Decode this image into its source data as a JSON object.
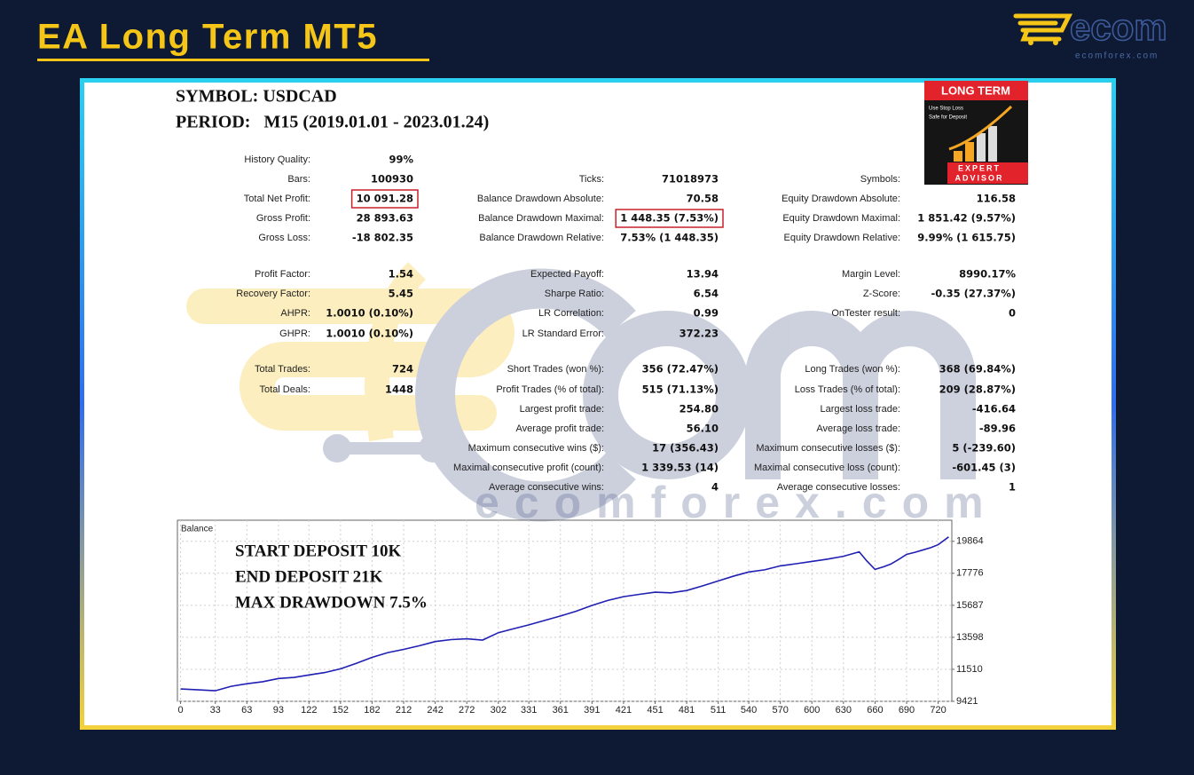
{
  "header": {
    "title": "EA Long Term MT5"
  },
  "logo": {
    "name": "ecom",
    "site": "ecomforex.com"
  },
  "watermark": {
    "site": "ecomforex.com"
  },
  "report": {
    "symbol": "SYMBOL: USDCAD",
    "period": "PERIOD:   M15 (2019.01.01 - 2023.01.24)",
    "column_1": [
      {
        "label": "History Quality:",
        "value": "99%"
      },
      {
        "label": "Bars:",
        "value": "100930"
      },
      {
        "label": "Total Net Profit:",
        "value": "10 091.28"
      },
      {
        "label": "Gross Profit:",
        "value": "28 893.63"
      },
      {
        "label": "Gross Loss:",
        "value": "-18 802.35"
      },
      {
        "label": "Profit Factor:",
        "value": "1.54"
      },
      {
        "label": "Recovery Factor:",
        "value": "5.45"
      },
      {
        "label": "AHPR:",
        "value": "1.0010 (0.10%)"
      },
      {
        "label": "GHPR:",
        "value": "1.0010 (0.10%)"
      },
      {
        "label": "Total Trades:",
        "value": "724"
      },
      {
        "label": "Total Deals:",
        "value": "1448"
      }
    ],
    "column_2": [
      {
        "label": "Ticks:",
        "value": "71018973"
      },
      {
        "label": "Balance Drawdown Absolute:",
        "value": "70.58"
      },
      {
        "label": "Balance Drawdown Maximal:",
        "value": "1 448.35 (7.53%)"
      },
      {
        "label": "Balance Drawdown Relative:",
        "value": "7.53% (1 448.35)"
      },
      {
        "label": "Expected Payoff:",
        "value": "13.94"
      },
      {
        "label": "Sharpe Ratio:",
        "value": "6.54"
      },
      {
        "label": "LR Correlation:",
        "value": "0.99"
      },
      {
        "label": "LR Standard Error:",
        "value": "372.23"
      },
      {
        "label": "Short Trades (won %):",
        "value": "356 (72.47%)"
      },
      {
        "label": "Profit Trades (% of total):",
        "value": "515 (71.13%)"
      },
      {
        "label": "Largest profit trade:",
        "value": "254.80"
      },
      {
        "label": "Average profit trade:",
        "value": "56.10"
      },
      {
        "label": "Maximum consecutive wins ($):",
        "value": "17 (356.43)"
      },
      {
        "label": "Maximal consecutive profit (count):",
        "value": "1 339.53 (14)"
      },
      {
        "label": "Average consecutive wins:",
        "value": "4"
      }
    ],
    "column_3": [
      {
        "label": "Symbols:"
      },
      {
        "label": "Equity Drawdown Absolute:",
        "value": "116.58"
      },
      {
        "label": "Equity Drawdown Maximal:",
        "value": "1 851.42 (9.57%)"
      },
      {
        "label": "Equity Drawdown Relative:",
        "value": "9.99% (1 615.75)"
      },
      {
        "label": "Margin Level:",
        "value": "8990.17%"
      },
      {
        "label": "Z-Score:",
        "value": "-0.35 (27.37%)"
      },
      {
        "label": "OnTester result:",
        "value": "0"
      },
      {
        "label": "Long Trades (won %):",
        "value": "368 (69.84%)"
      },
      {
        "label": "Loss Trades (% of total):",
        "value": "209 (28.87%)"
      },
      {
        "label": "Largest loss trade:",
        "value": "-416.64"
      },
      {
        "label": "Average loss trade:",
        "value": "-89.96"
      },
      {
        "label": "Maximum consecutive losses ($):",
        "value": "5 (-239.60)"
      },
      {
        "label": "Maximal consecutive loss (count):",
        "value": "-601.45 (3)"
      },
      {
        "label": "Average consecutive losses:",
        "value": "1"
      }
    ]
  },
  "badge": {
    "title": "LONG TERM",
    "line_1": "Use Stop Loss",
    "line_2": "Safe for Deposit",
    "word_1": "EXPERT",
    "word_2": "ADVISOR"
  },
  "chart_data": {
    "type": "line",
    "title": "Balance",
    "annotations": [
      "START DEPOSIT 10K",
      "END DEPOSIT      21K",
      "MAX DRAWDOWN  7.5%"
    ],
    "x": [
      0,
      15,
      33,
      48,
      63,
      78,
      93,
      108,
      122,
      137,
      152,
      167,
      182,
      197,
      212,
      227,
      242,
      257,
      272,
      287,
      302,
      316,
      331,
      346,
      361,
      376,
      391,
      406,
      421,
      436,
      451,
      466,
      481,
      496,
      511,
      526,
      540,
      555,
      570,
      585,
      600,
      615,
      630,
      645,
      652,
      660,
      668,
      675,
      683,
      690,
      698,
      705,
      713,
      720,
      730
    ],
    "values": [
      10225,
      10180,
      10110,
      10400,
      10570,
      10700,
      10910,
      10980,
      11140,
      11300,
      11540,
      11900,
      12290,
      12600,
      12810,
      13050,
      13320,
      13450,
      13500,
      13420,
      13900,
      14150,
      14410,
      14700,
      14990,
      15300,
      15680,
      16000,
      16250,
      16400,
      16540,
      16500,
      16650,
      16950,
      17280,
      17600,
      17860,
      18000,
      18260,
      18400,
      18550,
      18700,
      18890,
      19180,
      18600,
      18030,
      18200,
      18380,
      18700,
      19010,
      19150,
      19290,
      19450,
      19640,
      20150
    ],
    "color": "#1f1fb4",
    "xlim": [
      -3,
      733
    ],
    "ylim": [
      9421,
      21240
    ],
    "xticks": [
      0,
      33,
      63,
      93,
      122,
      152,
      182,
      212,
      242,
      272,
      302,
      331,
      361,
      391,
      421,
      451,
      481,
      511,
      540,
      570,
      600,
      630,
      660,
      690,
      720
    ],
    "yticks": [
      9421,
      11510,
      13598,
      15687,
      17776,
      19864
    ],
    "grid": true
  }
}
